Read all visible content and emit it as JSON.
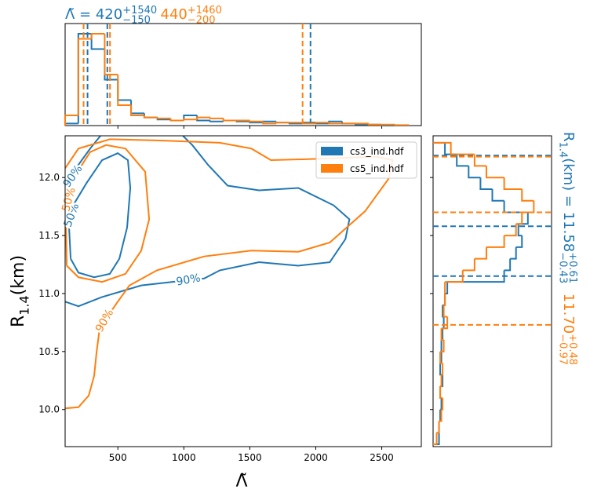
{
  "chart_data": [
    {
      "type": "histogram",
      "orientation": "vertical",
      "xlim": [
        100,
        2800
      ],
      "ylim": [
        0,
        1
      ],
      "bins": [
        100,
        200,
        300,
        400,
        500,
        600,
        700,
        800,
        900,
        1000,
        1100,
        1200,
        1300,
        1400,
        1500,
        1600,
        1700,
        1800,
        1900,
        2000,
        2100,
        2200,
        2300,
        2400,
        2500,
        2600,
        2700
      ],
      "series": [
        {
          "color": "#1f77b4",
          "values": [
            0.02,
            0.9,
            0.75,
            0.45,
            0.25,
            0.12,
            0.08,
            0.06,
            0.05,
            0.1,
            0.05,
            0.04,
            0.05,
            0.04,
            0.03,
            0.04,
            0.03,
            0.02,
            0.03,
            0.02,
            0.04,
            0.02,
            0.01,
            0.01,
            0,
            0
          ],
          "quantiles": [
            270,
            420,
            1960
          ]
        },
        {
          "color": "#ff7f0e",
          "values": [
            0.1,
            0.85,
            0.9,
            0.5,
            0.2,
            0.1,
            0.08,
            0.07,
            0.05,
            0.06,
            0.08,
            0.07,
            0.05,
            0.05,
            0.04,
            0.02,
            0.03,
            0.03,
            0.02,
            0.03,
            0.02,
            0.02,
            0.02,
            0.01,
            0.01,
            0.005
          ],
          "quantiles": [
            240,
            440,
            1900
          ]
        }
      ],
      "annotation": [
        {
          "text": "Λ̃ = 420",
          "color": "#1f77b4"
        },
        {
          "text": "+1540",
          "shift": "sup",
          "color": "#1f77b4"
        },
        {
          "text": "−150",
          "shift": "sub",
          "color": "#1f77b4"
        },
        {
          "text": "440",
          "color": "#ff7f0e"
        },
        {
          "text": "+1460",
          "shift": "sup",
          "color": "#ff7f0e"
        },
        {
          "text": "−200",
          "shift": "sub",
          "color": "#ff7f0e"
        }
      ]
    },
    {
      "type": "contour",
      "xlabel": "Λ̃",
      "ylabel": [
        {
          "text": "R"
        },
        {
          "text": "1.4",
          "shift": "sub"
        },
        {
          "text": "(km)"
        }
      ],
      "xlim": [
        100,
        2800
      ],
      "ylim": [
        9.68,
        12.36
      ],
      "xticks": [
        500,
        1000,
        1500,
        2000,
        2500
      ],
      "yticks": [
        {
          "value": 10,
          "label": "10.0"
        },
        {
          "value": 10.5,
          "label": "10.5"
        },
        {
          "value": 11,
          "label": "11.0"
        },
        {
          "value": 11.5,
          "label": "11.5"
        },
        {
          "value": 12,
          "label": "12.0"
        }
      ],
      "legend": "upper right",
      "series": [
        {
          "name": "cs3_ind.hdf",
          "color": "#1f77b4",
          "contours": [
            {
              "label": "50%",
              "x": [
                142,
                130,
                171,
                261,
                380,
                499,
                576,
                594,
                570,
                511,
                439,
                320,
                201,
                142
              ],
              "y": [
                11.3,
                11.57,
                11.78,
                11.95,
                12.15,
                12.21,
                12.15,
                11.91,
                11.57,
                11.3,
                11.17,
                11.14,
                11.18,
                11.3
              ]
            },
            {
              "label": "90%",
              "x": [
                100,
                201,
                380,
                677,
                915,
                1154,
                1273,
                1570,
                1868,
                2106,
                2225,
                2255,
                2136,
                1868,
                1570,
                1332,
                1183,
                1064,
                993,
                null,
                118,
                201,
                290,
                368
              ],
              "y": [
                10.93,
                10.89,
                10.97,
                11.07,
                11.1,
                11.13,
                11.2,
                11.27,
                11.24,
                11.27,
                11.47,
                11.64,
                11.76,
                11.91,
                11.89,
                11.93,
                12.11,
                12.28,
                12.36,
                null,
                11.91,
                12.11,
                12.25,
                12.36
              ]
            }
          ]
        },
        {
          "name": "cs5_ind.hdf",
          "color": "#ff7f0e",
          "contours": [
            {
              "label": "50%",
              "x": [
                112,
                106,
                154,
                290,
                410,
                558,
                707,
                737,
                677,
                558,
                380,
                201,
                112
              ],
              "y": [
                11.24,
                11.64,
                11.98,
                12.22,
                12.28,
                12.25,
                12.05,
                11.64,
                11.37,
                11.17,
                11.1,
                11.14,
                11.24
              ]
            },
            {
              "label": "90%",
              "x": [
                100,
                201,
                279,
                320,
                338,
                362,
                439,
                499,
                588,
                796,
                1154,
                1511,
                1868,
                2106,
                2374,
                2552,
                2582,
                2463,
                1987,
                1660,
                1511,
                1273,
                796,
                439,
                201,
                118,
                100
              ],
              "y": [
                10.01,
                10.02,
                10.12,
                10.29,
                10.49,
                10.7,
                10.83,
                10.93,
                11.07,
                11.2,
                11.32,
                11.37,
                11.36,
                11.44,
                11.71,
                11.99,
                12.15,
                12.18,
                12.16,
                12.15,
                12.25,
                12.3,
                12.32,
                12.33,
                12.25,
                12.11,
                12.08
              ]
            }
          ]
        }
      ]
    },
    {
      "type": "histogram",
      "orientation": "horizontal",
      "xlim": [
        0,
        1
      ],
      "ylim": [
        9.68,
        12.36
      ],
      "bins": [
        9.7,
        9.8,
        9.9,
        10.0,
        10.1,
        10.2,
        10.3,
        10.4,
        10.5,
        10.6,
        10.7,
        10.8,
        10.9,
        11.0,
        11.1,
        11.2,
        11.3,
        11.4,
        11.5,
        11.6,
        11.7,
        11.8,
        11.9,
        12.0,
        12.1,
        12.2,
        12.3
      ],
      "series": [
        {
          "color": "#1f77b4",
          "values": [
            0.05,
            0.05,
            0.06,
            0.07,
            0.06,
            0.08,
            0.06,
            0.07,
            0.07,
            0.08,
            0.09,
            0.08,
            0.1,
            0.12,
            0.6,
            0.65,
            0.7,
            0.75,
            0.72,
            0.8,
            0.6,
            0.5,
            0.4,
            0.3,
            0.2,
            0.1
          ],
          "quantiles": [
            11.15,
            11.58,
            12.19
          ]
        },
        {
          "color": "#ff7f0e",
          "values": [
            0.03,
            0.05,
            0.07,
            0.08,
            0.06,
            0.07,
            0.08,
            0.06,
            0.09,
            0.07,
            0.12,
            0.09,
            0.1,
            0.1,
            0.25,
            0.35,
            0.45,
            0.6,
            0.7,
            0.75,
            0.85,
            0.75,
            0.6,
            0.45,
            0.35,
            0.15
          ],
          "quantiles": [
            10.73,
            11.7,
            12.18
          ]
        }
      ],
      "annotation": [
        {
          "text": "R",
          "color": "#1f77b4"
        },
        {
          "text": "1.4",
          "shift": "sub",
          "color": "#1f77b4"
        },
        {
          "text": "(km) = 11.58",
          "color": "#1f77b4"
        },
        {
          "text": "+0.61",
          "shift": "sup",
          "color": "#1f77b4"
        },
        {
          "text": "−0.43",
          "shift": "sub",
          "color": "#1f77b4"
        },
        {
          "text": "11.70",
          "color": "#ff7f0e"
        },
        {
          "text": "+0.48",
          "shift": "sup",
          "color": "#ff7f0e"
        },
        {
          "text": "−0.97",
          "shift": "sub",
          "color": "#ff7f0e"
        }
      ]
    }
  ]
}
